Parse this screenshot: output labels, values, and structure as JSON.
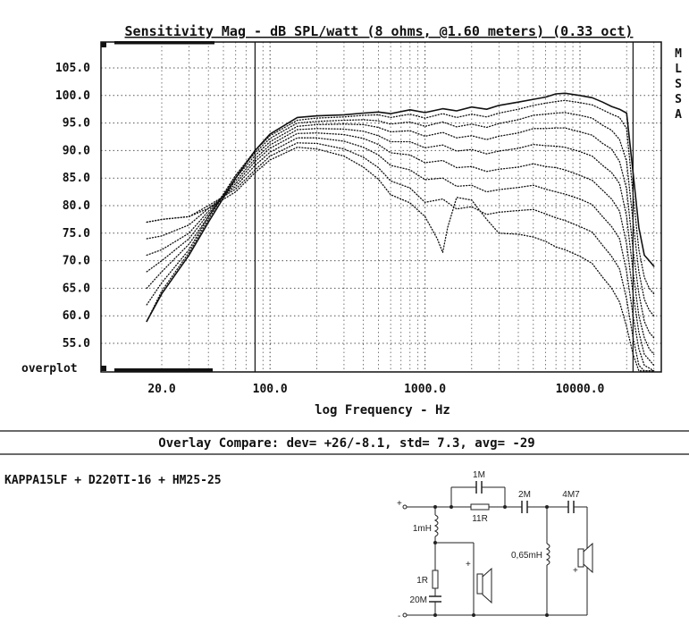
{
  "chart_data": {
    "type": "line",
    "title": "Sensitivity Mag - dB SPL/watt (8 ohms, @1.60 meters) (0.33 oct)",
    "xlabel": "log Frequency - Hz",
    "ylabel": "",
    "x_scale": "log",
    "xlim": [
      10,
      40000
    ],
    "ylim": [
      50,
      110
    ],
    "x_ticks": [
      {
        "value": 20,
        "label": "20.0"
      },
      {
        "value": 100,
        "label": "100.0"
      },
      {
        "value": 1000,
        "label": "1000.0"
      },
      {
        "value": 10000,
        "label": "10000.0"
      }
    ],
    "y_ticks": [
      {
        "value": 105,
        "label": "105.0"
      },
      {
        "value": 100,
        "label": "100.0"
      },
      {
        "value": 95,
        "label": "95.0"
      },
      {
        "value": 90,
        "label": "90.0"
      },
      {
        "value": 85,
        "label": "85.0"
      },
      {
        "value": 80,
        "label": "80.0"
      },
      {
        "value": 75,
        "label": "75.0"
      },
      {
        "value": 70,
        "label": "70.0"
      },
      {
        "value": 65,
        "label": "65.0"
      },
      {
        "value": 60,
        "label": "60.0"
      },
      {
        "value": 55,
        "label": "55.0"
      }
    ],
    "overplot_label": "overplot",
    "side_label": [
      "M",
      "L",
      "S",
      "S",
      "A"
    ],
    "grid": true,
    "markers_x": [
      80,
      22000
    ],
    "series": [
      {
        "style": "solid",
        "x": [
          16,
          20,
          30,
          40,
          60,
          80,
          100,
          150,
          200,
          300,
          400,
          500,
          600,
          800,
          1000,
          1300,
          1600,
          2000,
          2500,
          3000,
          4000,
          5000,
          6000,
          7000,
          8000,
          10000,
          12000,
          14000,
          16000,
          18000,
          20000,
          22000,
          24000,
          26000,
          28000,
          30000
        ],
        "y": [
          59,
          64,
          71,
          77,
          85,
          90,
          93,
          96,
          96.3,
          96.5,
          96.8,
          97,
          96.7,
          97.4,
          96.9,
          97.6,
          97.2,
          97.9,
          97.5,
          98.2,
          98.8,
          99.3,
          99.7,
          100.3,
          100.4,
          100,
          99.6,
          98.8,
          98,
          97.5,
          96.8,
          86,
          76,
          71,
          70,
          69
        ]
      },
      {
        "style": "dotted",
        "x": [
          16,
          20,
          30,
          40,
          60,
          80,
          100,
          150,
          200,
          300,
          400,
          500,
          600,
          800,
          1000,
          1300,
          1600,
          2000,
          2500,
          3000,
          4000,
          5000,
          6000,
          7000,
          8000,
          10000,
          12000,
          14000,
          16000,
          18000,
          20000,
          22000,
          24000,
          26000,
          28000,
          30000
        ],
        "y": [
          59,
          64.5,
          71.5,
          77.5,
          85.5,
          90,
          92.7,
          95.5,
          95.9,
          96.1,
          96.4,
          96.5,
          96,
          96.6,
          95.9,
          96.7,
          96,
          96.6,
          96.1,
          96.8,
          97.5,
          98.2,
          98.6,
          98.9,
          99.1,
          98.7,
          98.3,
          97.4,
          96.6,
          96,
          94,
          82,
          72,
          67,
          65,
          64
        ]
      },
      {
        "style": "dotted",
        "x": [
          16,
          20,
          30,
          40,
          60,
          80,
          100,
          150,
          200,
          300,
          400,
          500,
          600,
          800,
          1000,
          1300,
          1600,
          2000,
          2500,
          3000,
          4000,
          5000,
          6000,
          7000,
          8000,
          10000,
          12000,
          14000,
          16000,
          18000,
          20000,
          22000,
          24000,
          26000,
          28000,
          30000
        ],
        "y": [
          62,
          66,
          72,
          78,
          85.5,
          89.6,
          92.2,
          95,
          95.3,
          95.5,
          95.6,
          95.4,
          94.8,
          95.2,
          94.4,
          95.2,
          94.3,
          94.8,
          94.2,
          94.9,
          95.6,
          96.4,
          96.6,
          96.8,
          96.9,
          96.4,
          95.9,
          94.6,
          93.7,
          92,
          88,
          77,
          68,
          63,
          61,
          60
        ]
      },
      {
        "style": "dotted",
        "x": [
          16,
          20,
          30,
          40,
          60,
          80,
          100,
          150,
          200,
          300,
          400,
          500,
          600,
          800,
          1000,
          1300,
          1600,
          2000,
          2500,
          3000,
          4000,
          5000,
          6000,
          7000,
          8000,
          10000,
          12000,
          14000,
          16000,
          18000,
          20000,
          22000,
          24000,
          26000,
          28000,
          30000
        ],
        "y": [
          65,
          68,
          73,
          78,
          85,
          89.1,
          91.6,
          94.4,
          94.7,
          94.8,
          94.7,
          94.2,
          93.4,
          93.6,
          92.6,
          93.3,
          92.3,
          92.7,
          92,
          92.6,
          93.2,
          94,
          94,
          94.1,
          94.1,
          93.4,
          92.8,
          91.3,
          90.3,
          88,
          83,
          72,
          64,
          59,
          57,
          56
        ]
      },
      {
        "style": "dotted",
        "x": [
          16,
          20,
          30,
          40,
          60,
          80,
          100,
          150,
          200,
          300,
          400,
          500,
          600,
          800,
          1000,
          1300,
          1600,
          2000,
          2500,
          3000,
          4000,
          5000,
          6000,
          7000,
          8000,
          10000,
          12000,
          14000,
          16000,
          18000,
          20000,
          22000,
          24000,
          26000,
          28000,
          30000
        ],
        "y": [
          68,
          70,
          74,
          78.5,
          84.5,
          88.5,
          91,
          93.8,
          94,
          93.9,
          93.5,
          92.7,
          91.6,
          91.6,
          90.5,
          91,
          89.9,
          90.2,
          89.4,
          89.9,
          90.4,
          91.1,
          90.9,
          90.8,
          90.6,
          89.8,
          89,
          87.3,
          86,
          84,
          78,
          68,
          60,
          56,
          54,
          53
        ]
      },
      {
        "style": "dotted",
        "x": [
          16,
          20,
          30,
          40,
          60,
          80,
          100,
          150,
          200,
          300,
          400,
          500,
          600,
          800,
          1000,
          1300,
          1600,
          2000,
          2500,
          3000,
          4000,
          5000,
          6000,
          7000,
          8000,
          10000,
          12000,
          14000,
          16000,
          18000,
          20000,
          22000,
          24000,
          26000,
          28000,
          30000
        ],
        "y": [
          71,
          72,
          75,
          79,
          84,
          88,
          90.4,
          93.1,
          93.2,
          92.9,
          92.2,
          91.1,
          89.6,
          89.2,
          87.8,
          88.2,
          86.9,
          87.1,
          86.2,
          86.6,
          87,
          87.6,
          87.1,
          86.9,
          86.5,
          85.5,
          84.6,
          82.8,
          81.2,
          79,
          73,
          64,
          57,
          53,
          52,
          51
        ]
      },
      {
        "style": "dotted",
        "x": [
          16,
          20,
          30,
          40,
          60,
          80,
          100,
          150,
          200,
          300,
          400,
          500,
          600,
          800,
          1000,
          1300,
          1600,
          2000,
          2500,
          3000,
          4000,
          5000,
          6000,
          7000,
          8000,
          10000,
          12000,
          14000,
          16000,
          18000,
          20000,
          22000,
          24000,
          26000,
          28000,
          30000
        ],
        "y": [
          74,
          74.5,
          76.5,
          79.5,
          83.5,
          87.3,
          89.7,
          92.3,
          92.3,
          91.7,
          90.6,
          89.2,
          87.3,
          86.5,
          84.7,
          85,
          83.5,
          83.7,
          82.5,
          82.9,
          83.3,
          83.7,
          83,
          82.5,
          82.1,
          81.2,
          80.2,
          78,
          76.2,
          74,
          68,
          60,
          54,
          51,
          50.5,
          50
        ]
      },
      {
        "style": "dotted",
        "x": [
          16,
          20,
          30,
          40,
          60,
          80,
          100,
          150,
          200,
          300,
          400,
          500,
          600,
          800,
          1000,
          1300,
          1600,
          2000,
          2500,
          3000,
          4000,
          5000,
          6000,
          7000,
          8000,
          10000,
          12000,
          14000,
          16000,
          18000,
          20000,
          22000,
          24000,
          26000,
          28000,
          30000
        ],
        "y": [
          77,
          77.5,
          78,
          80,
          83,
          86.5,
          89,
          91.4,
          91.3,
          90.3,
          88.8,
          86.9,
          84.5,
          83.2,
          80.6,
          81.2,
          79.4,
          79.8,
          78.4,
          78.8,
          79.1,
          79.3,
          78.5,
          77.8,
          77.3,
          76.2,
          75.2,
          72.8,
          70.8,
          68.5,
          63,
          56,
          51,
          50,
          50,
          50
        ]
      },
      {
        "style": "dotted",
        "x": [
          16,
          20,
          30,
          40,
          60,
          80,
          100,
          150,
          200,
          300,
          400,
          500,
          600,
          800,
          1000,
          1200,
          1300,
          1400,
          1600,
          2000,
          2500,
          3000,
          4000,
          5000,
          6000,
          7000,
          8000,
          10000,
          12000,
          14000,
          16000,
          18000,
          20000,
          22000,
          24000,
          26000,
          28000,
          30000
        ],
        "y": [
          77,
          77.5,
          78,
          79.5,
          82.5,
          86,
          88.3,
          90.6,
          90.3,
          89,
          87,
          84.8,
          82,
          80.5,
          78,
          74,
          71.5,
          76,
          81.5,
          81,
          77.5,
          75,
          74.8,
          74.3,
          73.5,
          72.5,
          72,
          70.8,
          69.5,
          67,
          65,
          62.5,
          58,
          53,
          50,
          50,
          50,
          50
        ]
      }
    ]
  },
  "overlay": {
    "text": "Overlay Compare: dev= +26/-8.1, std= 7.3, avg= -29"
  },
  "config": {
    "text": "KAPPA15LF + D220TI-16 + HM25-25"
  },
  "schematic": {
    "c_1m": "1M",
    "r_11r": "11R",
    "c_2m": "2M",
    "c_4m7": "4M7",
    "l_1mh": "1mH",
    "l_065mh": "0,65mH",
    "r_1r": "1R",
    "c_20m": "20M",
    "plus_in": "+",
    "minus_in": "-",
    "plus_woofer": "+",
    "plus_tweeter": "+"
  }
}
